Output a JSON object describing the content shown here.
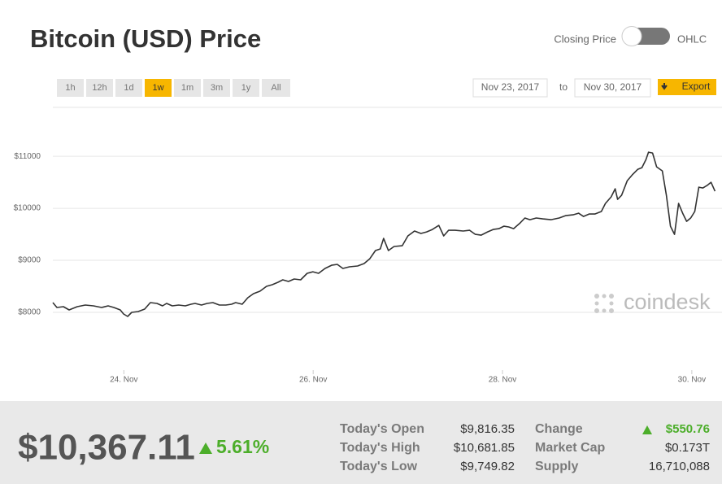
{
  "header": {
    "title": "Bitcoin (USD) Price"
  },
  "toggle": {
    "left": "Closing Price",
    "right": "OHLC"
  },
  "ranges": {
    "items": [
      "1h",
      "12h",
      "1d",
      "1w",
      "1m",
      "3m",
      "1y",
      "All"
    ],
    "selected": 3
  },
  "dates": {
    "from": "Nov 23, 2017",
    "separator": "to",
    "to": "Nov 30, 2017",
    "export": "Export"
  },
  "watermark": "coindesk",
  "chart_data": {
    "type": "line",
    "color": "#333333",
    "grid": true,
    "xlim": [
      23.25,
      30.25
    ],
    "ylim": [
      6890,
      11940
    ],
    "xticks": [
      {
        "value": 24,
        "label": "24. Nov"
      },
      {
        "value": 26,
        "label": "26. Nov"
      },
      {
        "value": 28,
        "label": "28. Nov"
      },
      {
        "value": 30,
        "label": "30. Nov"
      }
    ],
    "yticks": [
      {
        "value": 8000,
        "label": "$8000"
      },
      {
        "value": 9000,
        "label": "$9000"
      },
      {
        "value": 10000,
        "label": "$10000"
      },
      {
        "value": 11000,
        "label": "$11000"
      }
    ],
    "x": [
      23.25,
      23.293,
      23.362,
      23.422,
      23.508,
      23.593,
      23.679,
      23.765,
      23.834,
      23.894,
      23.962,
      23.997,
      24.04,
      24.083,
      24.151,
      24.22,
      24.28,
      24.349,
      24.409,
      24.452,
      24.512,
      24.58,
      24.649,
      24.709,
      24.752,
      24.82,
      24.88,
      24.94,
      25.009,
      25.078,
      25.138,
      25.181,
      25.25,
      25.31,
      25.37,
      25.438,
      25.507,
      25.567,
      25.628,
      25.679,
      25.739,
      25.799,
      25.868,
      25.937,
      25.997,
      26.057,
      26.126,
      26.194,
      26.254,
      26.314,
      26.383,
      26.469,
      26.538,
      26.598,
      26.658,
      26.709,
      26.744,
      26.795,
      26.855,
      26.941,
      27.001,
      27.07,
      27.138,
      27.198,
      27.259,
      27.327,
      27.379,
      27.43,
      27.499,
      27.585,
      27.653,
      27.713,
      27.774,
      27.842,
      27.902,
      27.962,
      28.014,
      28.066,
      28.117,
      28.186,
      28.237,
      28.289,
      28.357,
      28.426,
      28.512,
      28.598,
      28.666,
      28.744,
      28.804,
      28.855,
      28.915,
      28.975,
      29.044,
      29.087,
      29.147,
      29.19,
      29.216,
      29.258,
      29.318,
      29.37,
      29.43,
      29.473,
      29.516,
      29.542,
      29.585,
      29.628,
      29.688,
      29.731,
      29.774,
      29.817,
      29.86,
      29.903,
      29.945,
      29.988,
      30.031,
      30.074,
      30.117,
      30.16,
      30.203,
      30.245
    ],
    "values": [
      8188,
      8094,
      8109,
      8047,
      8109,
      8141,
      8125,
      8094,
      8125,
      8094,
      8047,
      7969,
      7922,
      8000,
      8016,
      8063,
      8188,
      8172,
      8125,
      8172,
      8125,
      8141,
      8125,
      8156,
      8172,
      8141,
      8172,
      8188,
      8141,
      8141,
      8156,
      8188,
      8156,
      8281,
      8359,
      8406,
      8500,
      8531,
      8578,
      8625,
      8594,
      8641,
      8625,
      8750,
      8781,
      8750,
      8844,
      8906,
      8922,
      8844,
      8875,
      8891,
      8938,
      9031,
      9188,
      9219,
      9422,
      9188,
      9266,
      9281,
      9469,
      9563,
      9516,
      9547,
      9594,
      9672,
      9469,
      9578,
      9578,
      9563,
      9578,
      9500,
      9484,
      9547,
      9594,
      9609,
      9656,
      9641,
      9609,
      9719,
      9813,
      9781,
      9813,
      9797,
      9781,
      9813,
      9859,
      9875,
      9906,
      9844,
      9891,
      9891,
      9938,
      10094,
      10219,
      10375,
      10172,
      10250,
      10531,
      10641,
      10750,
      10781,
      10938,
      11078,
      11063,
      10797,
      10719,
      10250,
      9656,
      9500,
      10094,
      9906,
      9750,
      9813,
      9938,
      10406,
      10391,
      10438,
      10500,
      10328
    ]
  },
  "summary": {
    "price": "$10,367.11",
    "change_pct": "5.61%",
    "rows": [
      [
        "Today's Open",
        "$9,816.35",
        "Change",
        "$550.76"
      ],
      [
        "Today's High",
        "$10,681.85",
        "Market Cap",
        "$0.173T"
      ],
      [
        "Today's Low",
        "$9,749.82",
        "Supply",
        "16,710,088"
      ]
    ]
  }
}
